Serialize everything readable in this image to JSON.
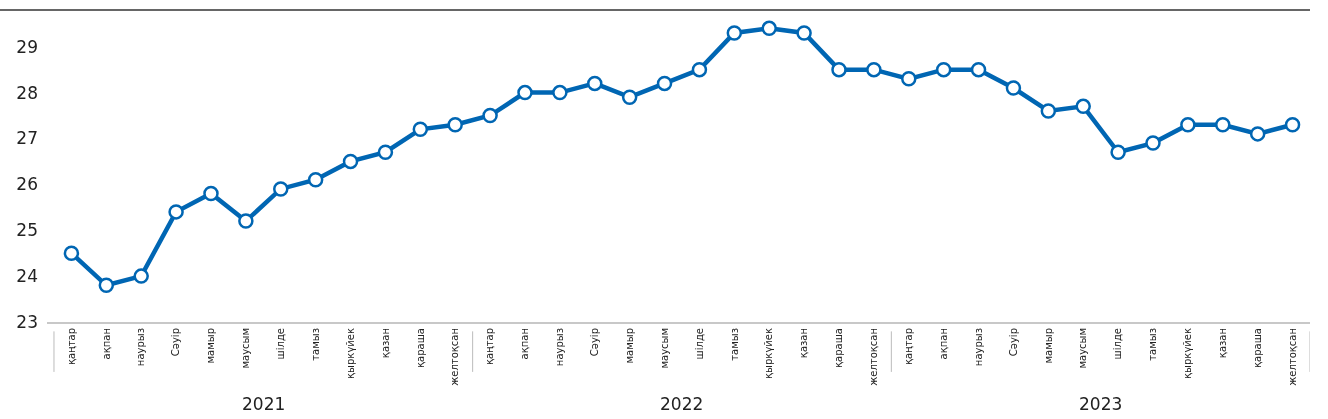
{
  "chart_data": {
    "type": "line",
    "categories": [
      "қаңтар",
      "ақпан",
      "наурыз",
      "Сәуір",
      "мамыр",
      "маусым",
      "шілде",
      "тамыз",
      "қыркүйек",
      "қазан",
      "қараша",
      "желтоқсан",
      "қаңтар",
      "ақпан",
      "наурыз",
      "Сәуір",
      "мамыр",
      "маусым",
      "шілде",
      "тамыз",
      "қыркүйек",
      "қазан",
      "қараша",
      "желтоқсан",
      "қаңтар",
      "ақпан",
      "наурыз",
      "Сәуір",
      "мамыр",
      "маусым",
      "шілде",
      "тамыз",
      "қыркүйек",
      "қазан",
      "қараша",
      "желтоқсан"
    ],
    "series": [
      {
        "color": "#0066b3",
        "values": [
          24.5,
          23.8,
          24.0,
          25.4,
          25.8,
          25.2,
          25.9,
          26.1,
          26.5,
          26.7,
          27.2,
          27.3,
          27.5,
          28.0,
          28.0,
          28.2,
          27.9,
          28.2,
          28.5,
          29.3,
          29.4,
          29.3,
          28.5,
          28.5,
          28.3,
          28.5,
          28.5,
          28.1,
          27.6,
          27.7,
          26.7,
          26.9,
          27.3,
          27.3,
          27.1,
          27.3
        ]
      }
    ],
    "ylim": [
      23,
      29.8
    ],
    "yticks": [
      23,
      24,
      25,
      26,
      27,
      28,
      29
    ],
    "marker": "circle",
    "line_style": "solid",
    "annotations": [
      "2021",
      "2022",
      "2023"
    ]
  }
}
